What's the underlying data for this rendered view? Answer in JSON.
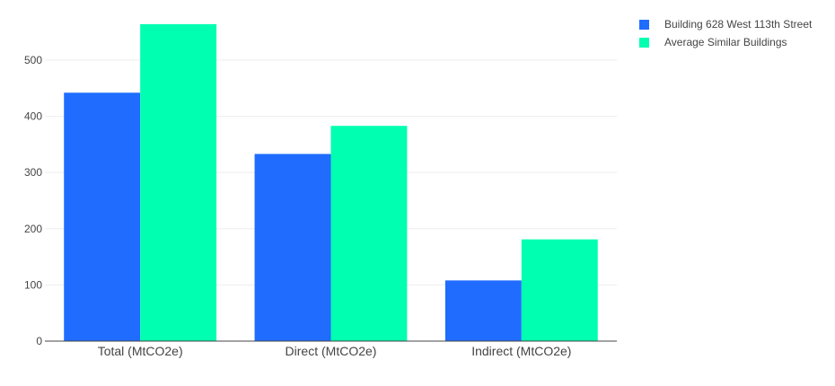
{
  "chart_data": {
    "type": "bar",
    "categories": [
      "Total (MtCO2e)",
      "Direct (MtCO2e)",
      "Indirect (MtCO2e)"
    ],
    "series": [
      {
        "name": "Building 628 West 113th Street",
        "color": "#1f6cff",
        "values": [
          442,
          333,
          108
        ]
      },
      {
        "name": "Average Similar Buildings",
        "color": "#00ffb0",
        "values": [
          564,
          383,
          181
        ]
      }
    ],
    "ylim": [
      0,
      575
    ],
    "yticks": [
      0,
      100,
      200,
      300,
      400,
      500
    ],
    "grid": true,
    "legend_position": "top-right",
    "title": "",
    "xlabel": "",
    "ylabel": ""
  }
}
